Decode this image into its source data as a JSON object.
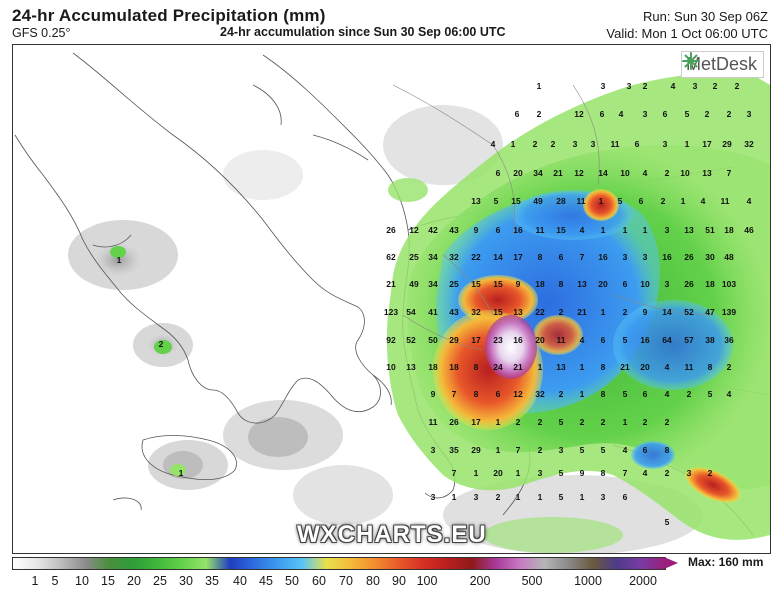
{
  "header": {
    "title": "24-hr Accumulated Precipitation (mm)",
    "model": "GFS 0.25°",
    "subtitle": "24-hr accumulation since Sun 30 Sep 06:00 UTC",
    "run": "Run: Sun 30 Sep 06Z",
    "valid": "Valid: Mon 1 Oct 06:00 UTC"
  },
  "brand": {
    "name": "MetDesk",
    "icon": "metdesk-logo-icon"
  },
  "watermark": "WXCHARTS.EU",
  "legend": {
    "ticks": [
      "1",
      "5",
      "10",
      "15",
      "20",
      "25",
      "30",
      "35",
      "40",
      "45",
      "50",
      "60",
      "70",
      "80",
      "90",
      "100",
      "200",
      "500",
      "1000",
      "2000"
    ],
    "max_label": "Max: 160 mm",
    "colors": [
      "#ffffff",
      "#e6e6e6",
      "#bdbdbd",
      "#8c8c8c",
      "#4a8f3c",
      "#2e9e3a",
      "#41b83b",
      "#63d14a",
      "#96e36a",
      "#1f3dbf",
      "#2d6ee0",
      "#3d9cf0",
      "#58c4f5",
      "#e8e04a",
      "#f5b83a",
      "#f28b2e",
      "#e8572a",
      "#d62f24",
      "#b81f1f",
      "#8f1a1a",
      "#a83a9c",
      "#c97ac4",
      "#b5b5b5",
      "#8a8a8a",
      "#6b5a3d",
      "#4d3b8a",
      "#7a3ba3",
      "#9a1f7b"
    ]
  },
  "precip_values": [
    "1",
    "3",
    "3",
    "2",
    "4",
    "3",
    "2",
    "2",
    "6",
    "2",
    "12",
    "6",
    "4",
    "3",
    "6",
    "5",
    "2",
    "2",
    "3",
    "4",
    "1",
    "2",
    "2",
    "3",
    "3",
    "11",
    "6",
    "3",
    "1",
    "17",
    "29",
    "32",
    "6",
    "20",
    "34",
    "21",
    "12",
    "14",
    "10",
    "4",
    "2",
    "10",
    "13",
    "7",
    "13",
    "5",
    "15",
    "49",
    "28",
    "11",
    "1",
    "5",
    "6",
    "2",
    "1",
    "4",
    "11",
    "4",
    "26",
    "12",
    "42",
    "43",
    "9",
    "6",
    "16",
    "11",
    "15",
    "4",
    "1",
    "1",
    "1",
    "3",
    "13",
    "51",
    "18",
    "46",
    "62",
    "25",
    "34",
    "32",
    "22",
    "14",
    "17",
    "8",
    "6",
    "7",
    "16",
    "3",
    "3",
    "16",
    "26",
    "30",
    "48",
    "21",
    "49",
    "34",
    "25",
    "15",
    "15",
    "9",
    "18",
    "8",
    "13",
    "20",
    "6",
    "10",
    "3",
    "26",
    "18",
    "103",
    "123",
    "54",
    "41",
    "43",
    "32",
    "15",
    "13",
    "22",
    "2",
    "21",
    "1",
    "2",
    "9",
    "14",
    "52",
    "47",
    "139",
    "92",
    "52",
    "50",
    "29",
    "17",
    "23",
    "16",
    "20",
    "11",
    "4",
    "6",
    "5",
    "16",
    "64",
    "57",
    "38",
    "36",
    "10",
    "13",
    "18",
    "18",
    "8",
    "24",
    "21",
    "1",
    "13",
    "1",
    "8",
    "21",
    "20",
    "4",
    "11",
    "8",
    "2",
    "9",
    "7",
    "8",
    "6",
    "12",
    "32",
    "2",
    "1",
    "8",
    "5",
    "6",
    "4",
    "2",
    "5",
    "4",
    "11",
    "26",
    "17",
    "1",
    "2",
    "2",
    "5",
    "2",
    "2",
    "1",
    "2",
    "2",
    "3",
    "35",
    "29",
    "1",
    "7",
    "2",
    "3",
    "5",
    "5",
    "4",
    "6",
    "8",
    "7",
    "1",
    "20",
    "1",
    "3",
    "5",
    "9",
    "8",
    "7",
    "4",
    "2",
    "3",
    "2",
    "3",
    "1",
    "3",
    "2",
    "1",
    "1",
    "5",
    "1",
    "3",
    "6",
    "5"
  ],
  "isolated_values": [
    "1",
    "2",
    "1"
  ]
}
